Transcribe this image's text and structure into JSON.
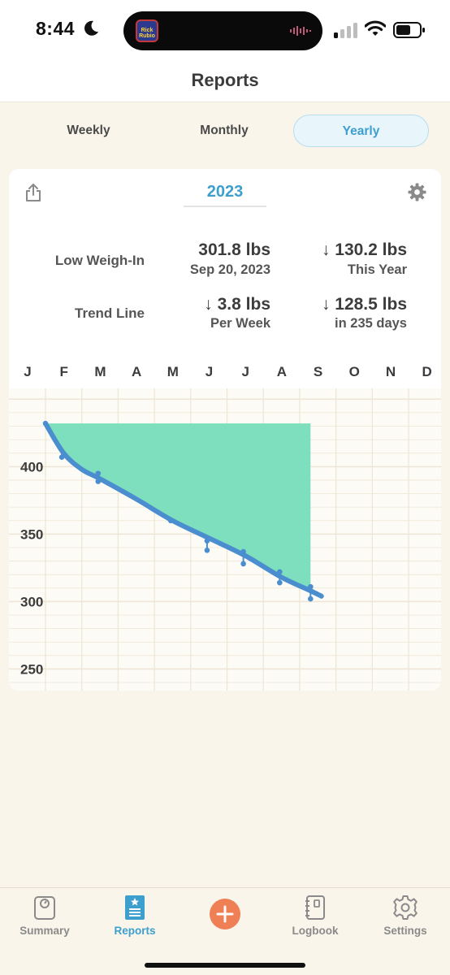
{
  "status_bar": {
    "time": "8:44",
    "app_badge": "Rick Rubio",
    "icons": [
      "moon-icon",
      "signal-icon",
      "wifi-icon",
      "battery-icon"
    ]
  },
  "nav": {
    "title": "Reports"
  },
  "segments": {
    "items": [
      "Weekly",
      "Monthly",
      "Yearly"
    ],
    "selected": "Yearly"
  },
  "card": {
    "year": "2023",
    "low_weigh_in": {
      "label": "Low Weigh-In",
      "value": "301.8 lbs",
      "date": "Sep 20, 2023"
    },
    "year_change": {
      "value": "↓ 130.2 lbs",
      "sub": "This Year"
    },
    "trend_line": {
      "label": "Trend Line",
      "value": "↓ 3.8 lbs",
      "sub": "Per Week"
    },
    "trend_total": {
      "value": "↓ 128.5 lbs",
      "sub": "in 235 days"
    }
  },
  "chart_data": {
    "type": "area",
    "months": [
      "J",
      "F",
      "M",
      "A",
      "M",
      "J",
      "J",
      "A",
      "S",
      "O",
      "N",
      "D"
    ],
    "y_ticks": [
      "400",
      "350",
      "300",
      "250"
    ],
    "ylim": [
      234,
      458
    ],
    "grid": true,
    "colors": {
      "area": "#7ddfbd",
      "trend_line": "#4a8ed0",
      "points": "#4a8ed0",
      "grid": "#ede6d4"
    },
    "area_top": 432,
    "weigh_ins": [
      {
        "month": 0.0,
        "weight": 432
      },
      {
        "month": 0.45,
        "weight": 407
      },
      {
        "month": 1.45,
        "weight": 395
      },
      {
        "month": 1.45,
        "weight": 389
      },
      {
        "month": 3.45,
        "weight": 360
      },
      {
        "month": 4.45,
        "weight": 345
      },
      {
        "month": 4.45,
        "weight": 338
      },
      {
        "month": 5.45,
        "weight": 337
      },
      {
        "month": 5.45,
        "weight": 328
      },
      {
        "month": 6.45,
        "weight": 322
      },
      {
        "month": 6.45,
        "weight": 314
      },
      {
        "month": 7.3,
        "weight": 311
      },
      {
        "month": 7.3,
        "weight": 302
      }
    ],
    "trend": [
      {
        "month": 0.0,
        "weight": 432
      },
      {
        "month": 0.5,
        "weight": 410
      },
      {
        "month": 1.0,
        "weight": 398
      },
      {
        "month": 1.5,
        "weight": 391
      },
      {
        "month": 2.5,
        "weight": 376
      },
      {
        "month": 3.5,
        "weight": 360
      },
      {
        "month": 4.5,
        "weight": 347
      },
      {
        "month": 5.5,
        "weight": 334
      },
      {
        "month": 6.5,
        "weight": 318
      },
      {
        "month": 7.3,
        "weight": 308
      },
      {
        "month": 7.6,
        "weight": 304
      }
    ]
  },
  "tab_bar": {
    "items": [
      {
        "label": "Summary",
        "icon": "scale-icon"
      },
      {
        "label": "Reports",
        "icon": "report-icon",
        "active": true
      },
      {
        "label": "",
        "icon": "plus-icon"
      },
      {
        "label": "Logbook",
        "icon": "logbook-icon"
      },
      {
        "label": "Settings",
        "icon": "gear-icon"
      }
    ]
  }
}
